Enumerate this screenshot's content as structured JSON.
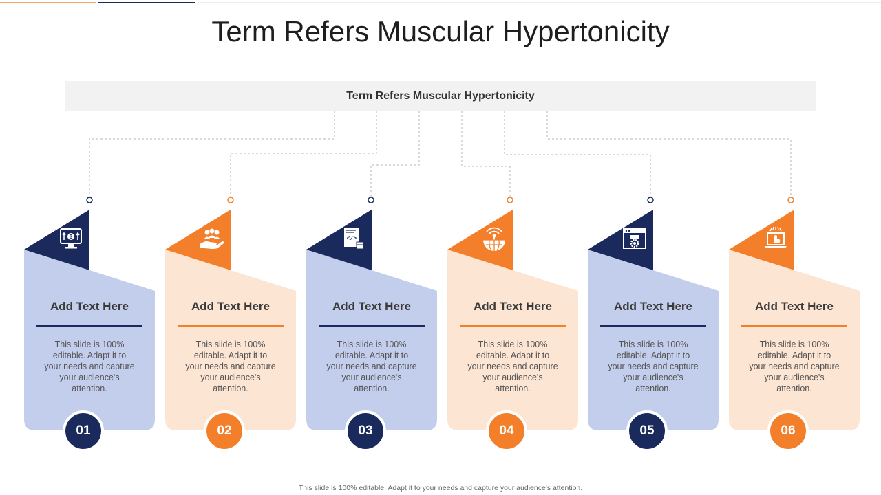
{
  "title": "Term Refers Muscular Hypertonicity",
  "banner": "Term Refers  Muscular Hypertonicity",
  "colors": {
    "navy": "#1b2a5c",
    "orange": "#f47f2a",
    "light_blue": "#c3ceec",
    "light_peach": "#fde5d4",
    "connector": "#b5b5b5"
  },
  "cards": [
    {
      "number": "01",
      "heading": "Add Text Here",
      "body": "This slide is 100% editable. Adapt it to your needs and capture your audience's attention.",
      "icon": "monitor-dollar-icon"
    },
    {
      "number": "02",
      "heading": "Add Text Here",
      "body": "This slide is 100% editable. Adapt it to your needs and capture your audience's attention.",
      "icon": "hand-people-icon"
    },
    {
      "number": "03",
      "heading": "Add Text Here",
      "body": "This slide is 100% editable. Adapt it to your needs and capture your audience's attention.",
      "icon": "code-document-icon"
    },
    {
      "number": "04",
      "heading": "Add Text Here",
      "body": "This slide is 100% editable. Adapt it to your needs and capture your audience's attention.",
      "icon": "antenna-globe-icon"
    },
    {
      "number": "05",
      "heading": "Add Text Here",
      "body": "This slide is 100% editable. Adapt it to your needs and capture your audience's attention.",
      "icon": "browser-settings-icon"
    },
    {
      "number": "06",
      "heading": "Add Text Here",
      "body": "This slide is 100% editable. Adapt it to your needs and capture your audience's attention.",
      "icon": "laptop-click-icon"
    }
  ],
  "footer": "This slide is 100% editable. Adapt it to your needs and capture your audience's attention."
}
